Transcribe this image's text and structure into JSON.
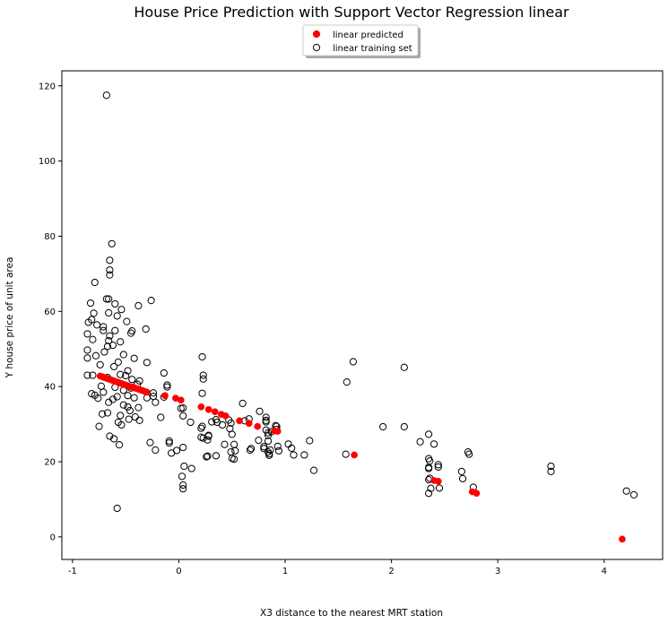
{
  "chart_data": {
    "type": "scatter",
    "title": "House Price Prediction with Support Vector Regression linear",
    "xlabel": "X3 distance to the nearest MRT station",
    "ylabel": "Y house price of unit area",
    "xlim": [
      -1.1,
      4.55
    ],
    "ylim": [
      -6,
      124
    ],
    "xticks": [
      -1,
      0,
      1,
      2,
      3,
      4
    ],
    "yticks": [
      0,
      20,
      40,
      60,
      80,
      100,
      120
    ],
    "grid": false,
    "legend_position": "top-center (outside plot)",
    "series": [
      {
        "name": "linear predicted",
        "marker": "filled-circle",
        "color": "#ff0000",
        "points": [
          [
            -0.74,
            42.8
          ],
          [
            -0.72,
            42.6
          ],
          [
            -0.7,
            42.4
          ],
          [
            -0.68,
            42.2
          ],
          [
            -0.66,
            42.0
          ],
          [
            -0.64,
            41.8
          ],
          [
            -0.62,
            41.6
          ],
          [
            -0.6,
            41.4
          ],
          [
            -0.58,
            41.2
          ],
          [
            -0.56,
            41.0
          ],
          [
            -0.54,
            40.8
          ],
          [
            -0.52,
            40.6
          ],
          [
            -0.5,
            40.4
          ],
          [
            -0.48,
            40.2
          ],
          [
            -0.46,
            40.0
          ],
          [
            -0.44,
            39.9
          ],
          [
            -0.42,
            39.7
          ],
          [
            -0.4,
            39.5
          ],
          [
            -0.38,
            39.3
          ],
          [
            -0.36,
            39.1
          ],
          [
            -0.34,
            38.9
          ],
          [
            -0.32,
            38.7
          ],
          [
            -0.3,
            38.5
          ],
          [
            -0.13,
            37.6
          ],
          [
            -0.03,
            36.9
          ],
          [
            0.02,
            36.4
          ],
          [
            0.21,
            34.6
          ],
          [
            0.28,
            33.9
          ],
          [
            0.34,
            33.3
          ],
          [
            0.4,
            32.6
          ],
          [
            0.44,
            32.2
          ],
          [
            0.57,
            30.9
          ],
          [
            0.66,
            30.2
          ],
          [
            0.74,
            29.4
          ],
          [
            0.9,
            28.2
          ],
          [
            0.93,
            28.1
          ],
          [
            1.65,
            21.8
          ],
          [
            2.4,
            15.0
          ],
          [
            2.44,
            14.8
          ],
          [
            2.76,
            12.0
          ],
          [
            2.8,
            11.6
          ],
          [
            4.17,
            -0.6
          ]
        ]
      },
      {
        "name": "linear training set",
        "marker": "hollow-circle",
        "color": "#000000",
        "points": [
          [
            -0.68,
            117.5
          ],
          [
            -0.63,
            78.0
          ],
          [
            -0.65,
            73.6
          ],
          [
            -0.65,
            71.0
          ],
          [
            -0.65,
            69.7
          ],
          [
            -0.79,
            67.7
          ],
          [
            -0.68,
            63.3
          ],
          [
            -0.66,
            63.3
          ],
          [
            -0.26,
            62.9
          ],
          [
            -0.6,
            62.0
          ],
          [
            -0.83,
            62.2
          ],
          [
            -0.38,
            61.5
          ],
          [
            -0.54,
            60.5
          ],
          [
            -0.8,
            59.5
          ],
          [
            -0.66,
            59.6
          ],
          [
            -0.58,
            58.8
          ],
          [
            -0.82,
            57.8
          ],
          [
            -0.85,
            57.1
          ],
          [
            -0.49,
            57.3
          ],
          [
            -0.77,
            56.4
          ],
          [
            -0.31,
            55.3
          ],
          [
            -0.71,
            55.9
          ],
          [
            -0.71,
            54.9
          ],
          [
            -0.44,
            54.8
          ],
          [
            -0.6,
            54.9
          ],
          [
            -0.86,
            54.0
          ],
          [
            -0.45,
            54.2
          ],
          [
            -0.65,
            53.5
          ],
          [
            -0.81,
            52.5
          ],
          [
            -0.66,
            52.2
          ],
          [
            -0.55,
            51.9
          ],
          [
            -0.62,
            51.0
          ],
          [
            -0.67,
            50.7
          ],
          [
            -0.86,
            49.7
          ],
          [
            -0.7,
            49.2
          ],
          [
            -0.52,
            48.5
          ],
          [
            -0.78,
            48.2
          ],
          [
            -0.42,
            47.5
          ],
          [
            -0.86,
            47.6
          ],
          [
            -0.57,
            46.5
          ],
          [
            -0.3,
            46.4
          ],
          [
            -0.74,
            45.8
          ],
          [
            -0.61,
            45.3
          ],
          [
            -0.48,
            44.2
          ],
          [
            -0.81,
            43.0
          ],
          [
            -0.86,
            43.0
          ],
          [
            -0.55,
            43.2
          ],
          [
            -0.67,
            42.4
          ],
          [
            -0.5,
            42.9
          ],
          [
            -0.44,
            41.9
          ],
          [
            -0.37,
            41.5
          ],
          [
            -0.39,
            40.6
          ],
          [
            -0.73,
            40.1
          ],
          [
            -0.6,
            39.8
          ],
          [
            -0.45,
            39.6
          ],
          [
            -0.52,
            39.0
          ],
          [
            -0.71,
            38.5
          ],
          [
            -0.82,
            38.1
          ],
          [
            -0.79,
            37.7
          ],
          [
            -0.48,
            37.6
          ],
          [
            -0.58,
            37.3
          ],
          [
            -0.3,
            37.0
          ],
          [
            -0.42,
            37.0
          ],
          [
            -0.24,
            38.3
          ],
          [
            -0.24,
            37.4
          ],
          [
            -0.62,
            36.6
          ],
          [
            -0.76,
            36.9
          ],
          [
            -0.66,
            35.8
          ],
          [
            -0.52,
            35.1
          ],
          [
            -0.48,
            34.6
          ],
          [
            -0.38,
            34.4
          ],
          [
            -0.22,
            35.8
          ],
          [
            -0.46,
            33.6
          ],
          [
            -0.67,
            33.0
          ],
          [
            -0.72,
            32.7
          ],
          [
            -0.55,
            32.3
          ],
          [
            -0.41,
            31.9
          ],
          [
            -0.47,
            31.3
          ],
          [
            -0.37,
            31.0
          ],
          [
            -0.57,
            30.5
          ],
          [
            -0.54,
            29.8
          ],
          [
            -0.75,
            29.4
          ],
          [
            -0.65,
            26.8
          ],
          [
            -0.61,
            26.1
          ],
          [
            -0.56,
            24.5
          ],
          [
            -0.27,
            25.1
          ],
          [
            -0.22,
            23.1
          ],
          [
            -0.58,
            7.6
          ],
          [
            -0.14,
            43.6
          ],
          [
            -0.11,
            40.4
          ],
          [
            -0.11,
            39.9
          ],
          [
            -0.14,
            37.2
          ],
          [
            -0.17,
            31.8
          ],
          [
            -0.09,
            25.5
          ],
          [
            -0.09,
            25.0
          ],
          [
            -0.07,
            22.3
          ],
          [
            -0.02,
            23.0
          ],
          [
            0.04,
            23.8
          ],
          [
            0.02,
            34.2
          ],
          [
            0.04,
            34.3
          ],
          [
            0.04,
            32.2
          ],
          [
            0.05,
            18.8
          ],
          [
            0.03,
            16.1
          ],
          [
            0.04,
            13.8
          ],
          [
            0.04,
            12.8
          ],
          [
            0.11,
            30.5
          ],
          [
            0.12,
            18.2
          ],
          [
            0.22,
            47.9
          ],
          [
            0.23,
            43.0
          ],
          [
            0.23,
            42.0
          ],
          [
            0.22,
            38.2
          ],
          [
            0.22,
            29.4
          ],
          [
            0.21,
            28.9
          ],
          [
            0.21,
            26.5
          ],
          [
            0.23,
            26.3
          ],
          [
            0.28,
            26.8
          ],
          [
            0.28,
            27.0
          ],
          [
            0.27,
            25.8
          ],
          [
            0.27,
            21.5
          ],
          [
            0.26,
            21.3
          ],
          [
            0.31,
            30.6
          ],
          [
            0.35,
            31.2
          ],
          [
            0.36,
            30.5
          ],
          [
            0.35,
            21.6
          ],
          [
            0.41,
            29.8
          ],
          [
            0.43,
            24.6
          ],
          [
            0.47,
            31.1
          ],
          [
            0.49,
            30.3
          ],
          [
            0.48,
            28.8
          ],
          [
            0.5,
            27.3
          ],
          [
            0.49,
            22.6
          ],
          [
            0.5,
            20.9
          ],
          [
            0.52,
            20.7
          ],
          [
            0.52,
            24.6
          ],
          [
            0.53,
            22.9
          ],
          [
            0.6,
            35.5
          ],
          [
            0.62,
            30.9
          ],
          [
            0.66,
            31.4
          ],
          [
            0.67,
            23.1
          ],
          [
            0.68,
            23.5
          ],
          [
            0.76,
            33.4
          ],
          [
            0.75,
            25.7
          ],
          [
            0.8,
            23.5
          ],
          [
            0.8,
            24.0
          ],
          [
            0.82,
            31.8
          ],
          [
            0.82,
            31.0
          ],
          [
            0.82,
            30.6
          ],
          [
            0.82,
            28.4
          ],
          [
            0.84,
            27.7
          ],
          [
            0.84,
            27.0
          ],
          [
            0.84,
            25.5
          ],
          [
            0.84,
            22.6
          ],
          [
            0.85,
            22.1
          ],
          [
            0.85,
            21.7
          ],
          [
            0.86,
            23.1
          ],
          [
            0.87,
            28.0
          ],
          [
            0.91,
            29.6
          ],
          [
            0.92,
            29.4
          ],
          [
            0.92,
            28.6
          ],
          [
            0.93,
            24.1
          ],
          [
            0.94,
            22.9
          ],
          [
            1.03,
            24.7
          ],
          [
            1.06,
            23.6
          ],
          [
            1.08,
            21.8
          ],
          [
            1.18,
            21.8
          ],
          [
            1.23,
            25.6
          ],
          [
            1.27,
            17.7
          ],
          [
            1.58,
            41.2
          ],
          [
            1.57,
            22.0
          ],
          [
            1.64,
            46.6
          ],
          [
            1.92,
            29.3
          ],
          [
            2.12,
            45.1
          ],
          [
            2.12,
            29.3
          ],
          [
            2.27,
            25.3
          ],
          [
            2.35,
            27.3
          ],
          [
            2.35,
            20.8
          ],
          [
            2.36,
            20.2
          ],
          [
            2.35,
            18.5
          ],
          [
            2.35,
            18.2
          ],
          [
            2.36,
            15.6
          ],
          [
            2.35,
            15.2
          ],
          [
            2.35,
            11.6
          ],
          [
            2.37,
            12.9
          ],
          [
            2.4,
            24.7
          ],
          [
            2.44,
            19.2
          ],
          [
            2.44,
            18.6
          ],
          [
            2.45,
            13.0
          ],
          [
            2.66,
            17.4
          ],
          [
            2.67,
            15.5
          ],
          [
            2.72,
            22.6
          ],
          [
            2.73,
            22.0
          ],
          [
            2.77,
            13.2
          ],
          [
            3.5,
            18.8
          ],
          [
            3.5,
            17.4
          ],
          [
            4.21,
            12.2
          ],
          [
            4.28,
            11.2
          ]
        ]
      }
    ]
  }
}
